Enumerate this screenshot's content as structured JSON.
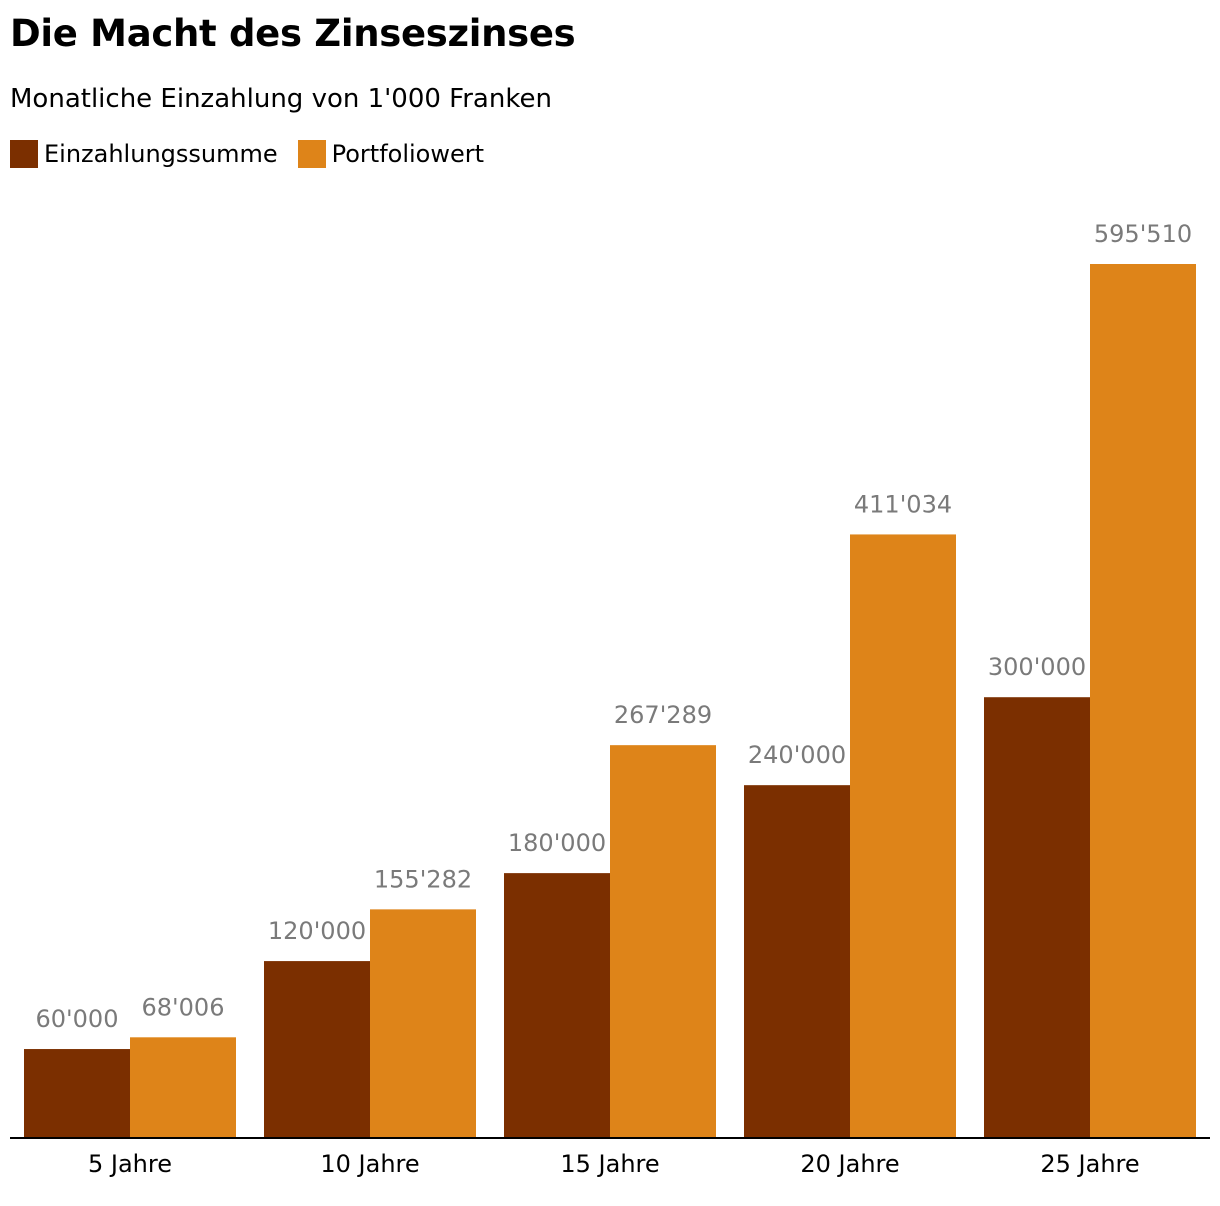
{
  "chart_data": {
    "type": "bar",
    "title": "Die Macht des Zinseszinses",
    "subtitle": "Monatliche Einzahlung von 1'000 Franken",
    "categories": [
      "5 Jahre",
      "10 Jahre",
      "15 Jahre",
      "20 Jahre",
      "25 Jahre"
    ],
    "series": [
      {
        "name": "Einzahlungssumme",
        "color": "#7b2f00",
        "values": [
          60000,
          120000,
          180000,
          240000,
          300000
        ],
        "labels": [
          "60'000",
          "120'000",
          "180'000",
          "240'000",
          "300'000"
        ]
      },
      {
        "name": "Portfoliowert",
        "color": "#de8419",
        "values": [
          68006,
          155282,
          267289,
          411034,
          595510
        ],
        "labels": [
          "68'006",
          "155'282",
          "267'289",
          "411'034",
          "595'510"
        ]
      }
    ],
    "ylim": [
      0,
      595510
    ],
    "grid": false,
    "legend": "top-left",
    "label_color": "#7a7a7a",
    "axis_color": "#000000"
  }
}
